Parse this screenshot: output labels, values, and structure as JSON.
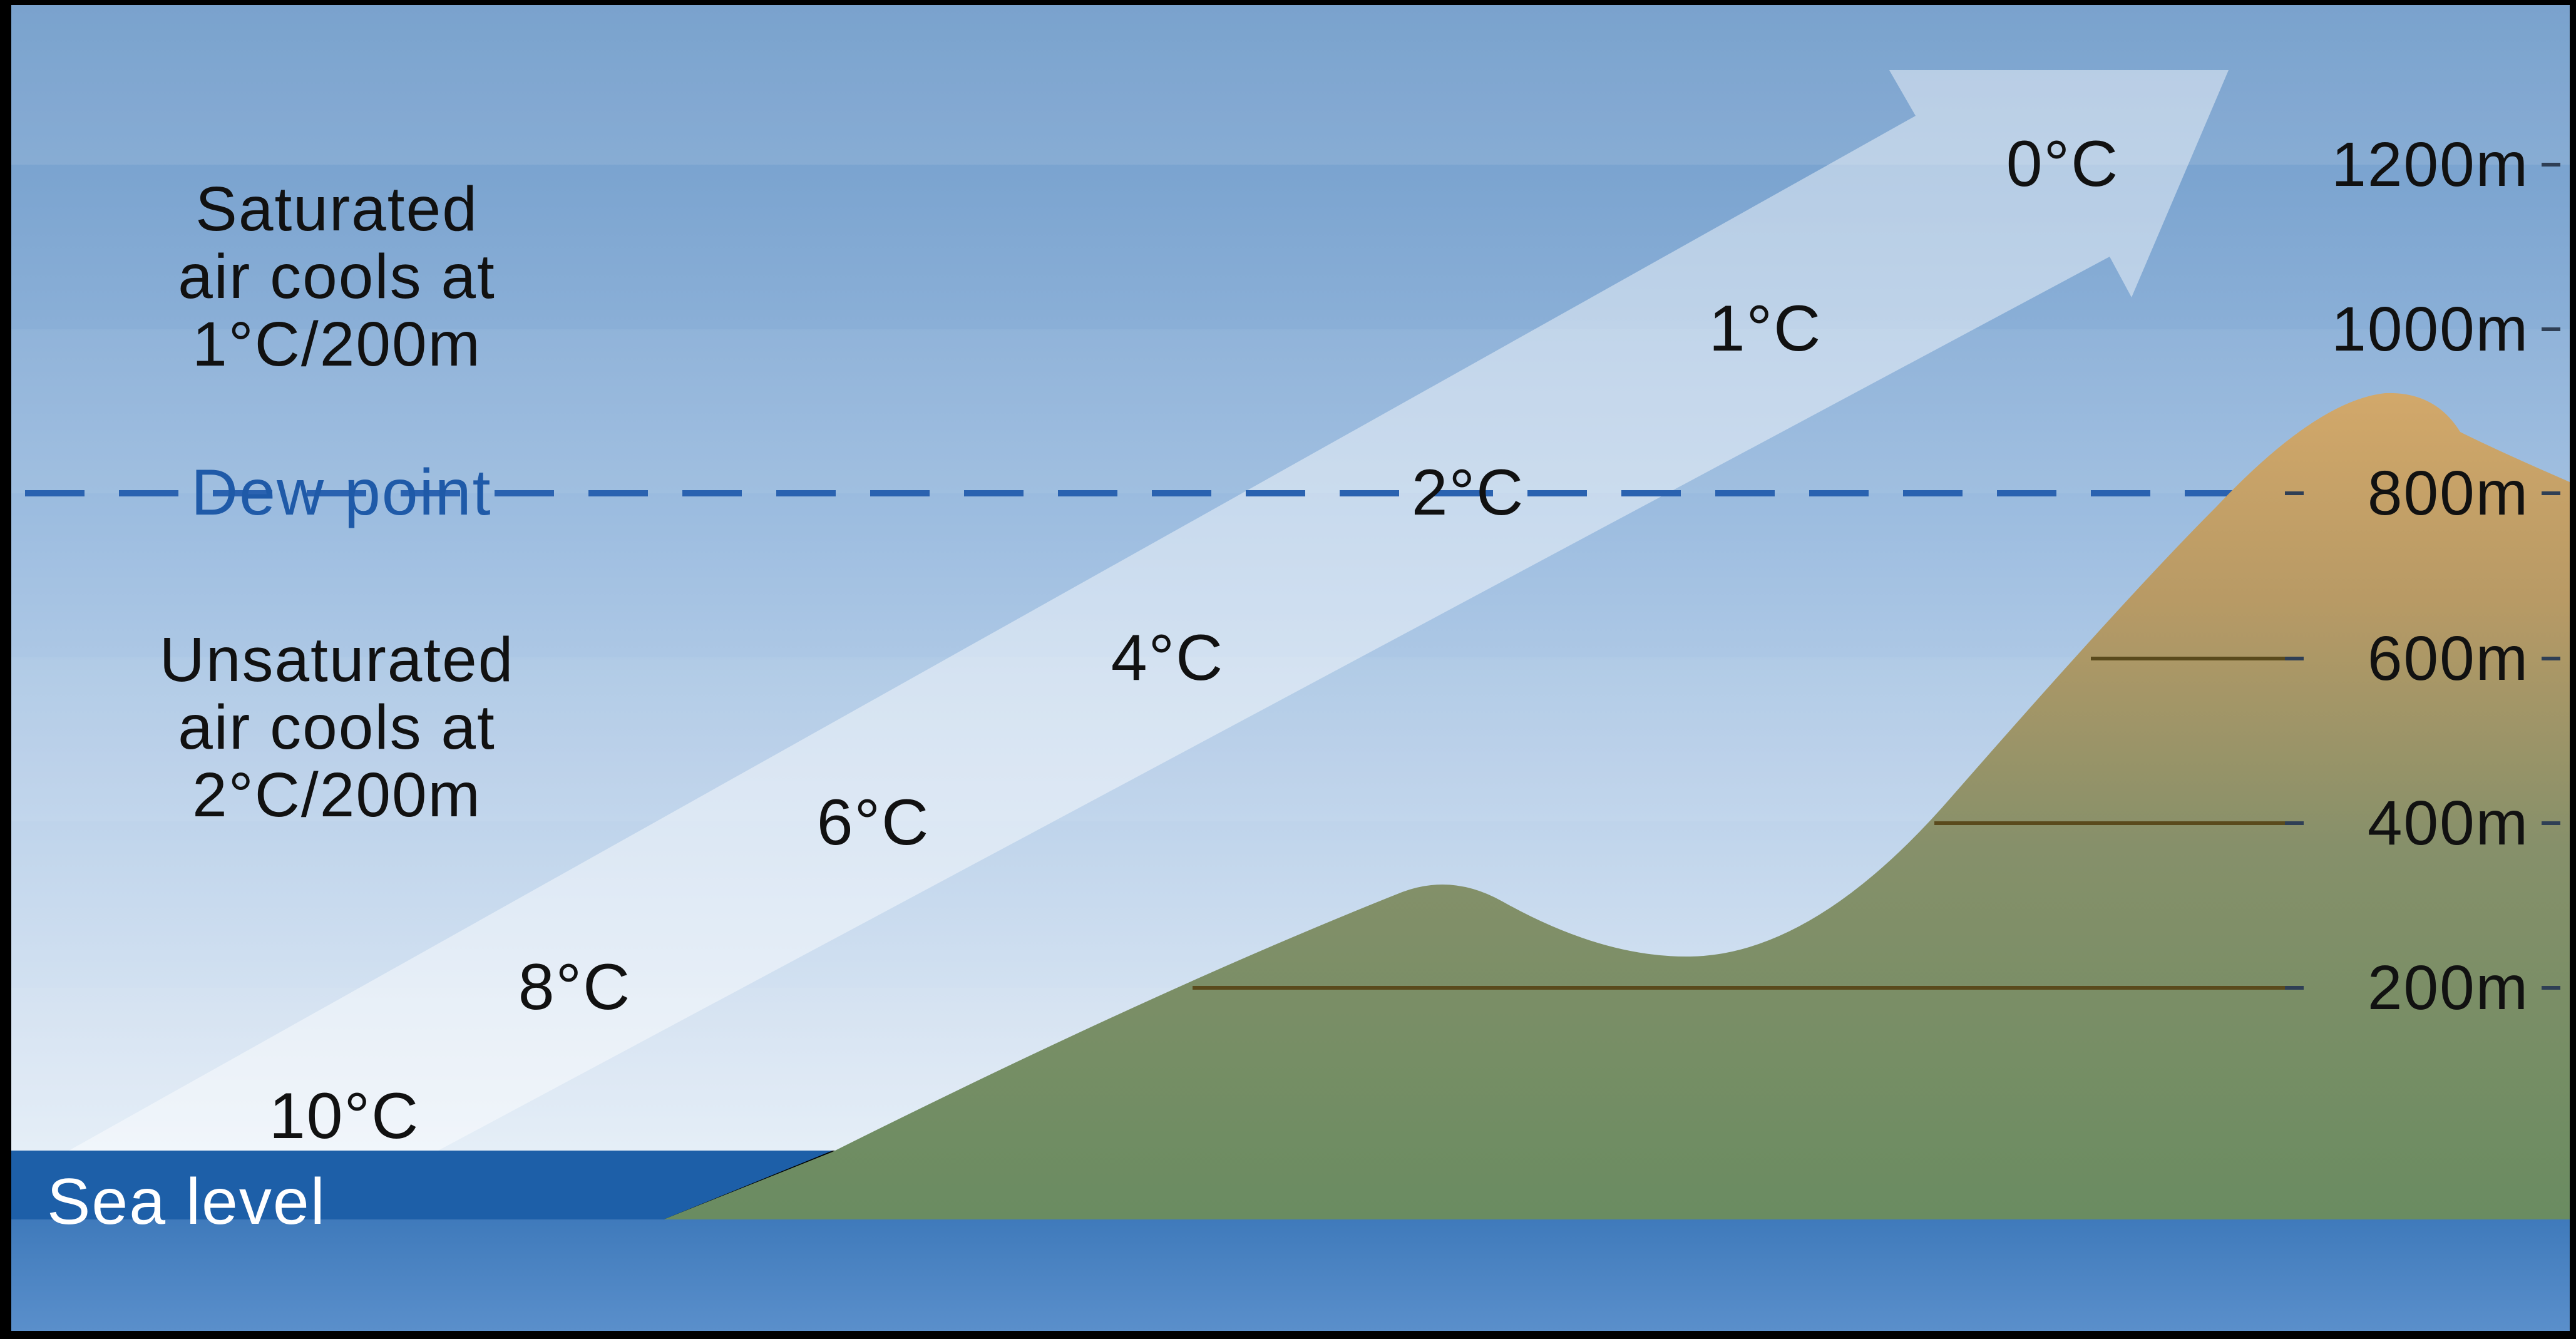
{
  "labels": {
    "saturated_note": [
      "Saturated",
      "air cools at",
      "1°C/200m"
    ],
    "unsaturated_note": [
      "Unsaturated",
      "air cools at",
      "2°C/200m"
    ],
    "dew_point": "Dew point",
    "sea_level": "Sea level"
  },
  "altitudes": [
    "1200m",
    "1000m",
    "800m",
    "600m",
    "400m",
    "200m"
  ],
  "temperatures": [
    "0°C",
    "1°C",
    "2°C",
    "4°C",
    "6°C",
    "8°C",
    "10°C"
  ],
  "colors": {
    "sky_top": "#6f9ccb",
    "sky_bottom": "#dde8f4",
    "arrow": "#ffffff",
    "dew_line": "#2a62b0",
    "land_low": "#6f8f62",
    "land_high": "#c9a46a",
    "sea": "#1d5fa8",
    "sea_band": "#3f7fc0",
    "contour": "#5a4a1c"
  },
  "icons": {
    "arrow": "rising-air-arrow-icon",
    "mountain": "mountain-icon"
  }
}
